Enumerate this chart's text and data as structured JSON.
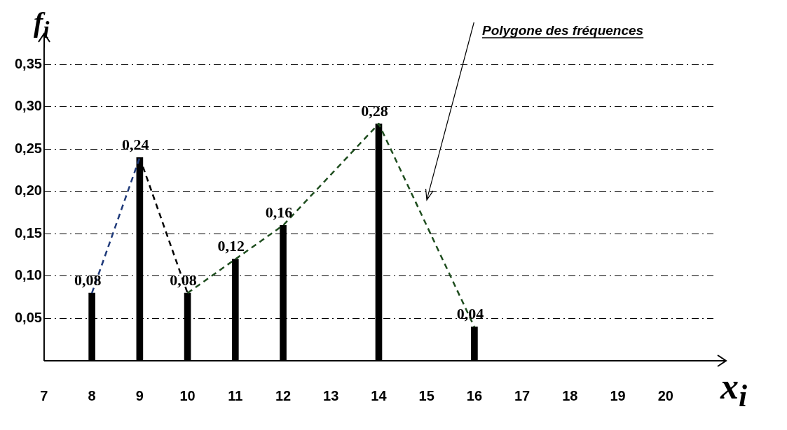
{
  "chart_data": {
    "type": "bar",
    "x": [
      8,
      9,
      10,
      11,
      12,
      14,
      16
    ],
    "series": [
      {
        "color": "#000000",
        "values": [
          0.08,
          0.24,
          0.08,
          0.12,
          0.16,
          0.28,
          0.04
        ],
        "value_labels": [
          "0,08",
          "0,24",
          "0,08",
          "0,12",
          "0,16",
          "0,28",
          "0,04"
        ]
      },
      {
        "type": "line",
        "x": [
          8,
          9
        ],
        "values": [
          0.08,
          0.24
        ],
        "color": "#1f3a7a",
        "line_style": "dashed"
      },
      {
        "type": "line",
        "x": [
          9,
          10
        ],
        "values": [
          0.24,
          0.08
        ],
        "color": "#000000",
        "line_style": "dashed"
      },
      {
        "type": "line",
        "x": [
          10,
          11,
          12,
          14,
          16
        ],
        "values": [
          0.08,
          0.12,
          0.16,
          0.28,
          0.04
        ],
        "color": "#1e4d1e",
        "line_style": "dashed"
      }
    ],
    "xlim": [
      7,
      21
    ],
    "xticks": [
      7,
      8,
      9,
      10,
      11,
      12,
      13,
      14,
      15,
      16,
      17,
      18,
      19,
      20
    ],
    "ylim": [
      0,
      0.37
    ],
    "yticks": [
      {
        "value": 0.05,
        "label": "0,05"
      },
      {
        "value": 0.1,
        "label": "0,10"
      },
      {
        "value": 0.15,
        "label": "0,15"
      },
      {
        "value": 0.2,
        "label": "0,20"
      },
      {
        "value": 0.25,
        "label": "0,25"
      },
      {
        "value": 0.3,
        "label": "0,30"
      },
      {
        "value": 0.35,
        "label": "0,35"
      }
    ],
    "xlabel": "x$_{i}$",
    "ylabel": "f$_{i}$",
    "grid": "y",
    "legend": false,
    "marker": "none",
    "annotations": [
      "Polygone des fréquences"
    ]
  }
}
